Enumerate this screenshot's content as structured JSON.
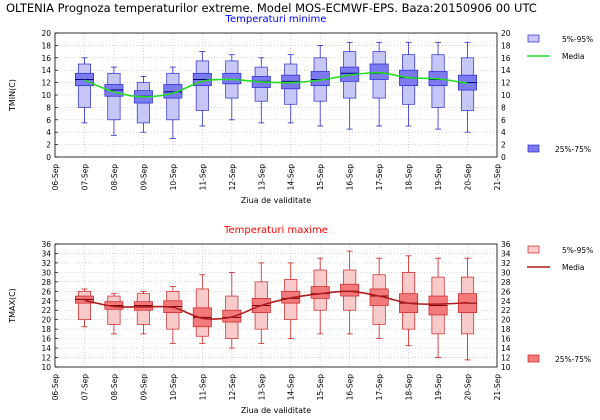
{
  "page_title": "OLTENIA  Prognoza temperaturilor extreme.  Model MOS-ECMWF-EPS. Baza:20150906 00 UTC",
  "colors": {
    "min_title": "#0000ff",
    "max_title": "#ff0000",
    "min_box": "#7b7bef",
    "min_box_light": "#c6c6f7",
    "min_stroke": "#2a2ad0",
    "min_median": "#00007a",
    "min_mean": "#22dd22",
    "max_box": "#f27a7a",
    "max_box_light": "#f8caca",
    "max_stroke": "#cc2020",
    "max_median": "#7a0000",
    "max_mean": "#b01c1c"
  },
  "chart_data": [
    {
      "type": "box",
      "title": "Temperaturi minime",
      "xlabel": "Ziua de validitate",
      "ylabel": "TMIN(C)",
      "ylim": [
        0,
        20
      ],
      "yticks": [
        "0",
        "2",
        "4",
        "6",
        "8",
        "10",
        "12",
        "14",
        "16",
        "18",
        "20"
      ],
      "categories": [
        "06-Sep",
        "07-Sep",
        "08-Sep",
        "09-Sep",
        "10-Sep",
        "11-Sep",
        "12-Sep",
        "13-Sep",
        "14-Sep",
        "15-Sep",
        "16-Sep",
        "17-Sep",
        "18-Sep",
        "19-Sep",
        "20-Sep",
        "21-Sep"
      ],
      "grid": true,
      "legend": {
        "placement": "right",
        "p5_95": "5%-95%",
        "mean": "Media",
        "p25_75": "25%-75%"
      },
      "series": [
        {
          "category": "07-Sep",
          "min": 5.5,
          "p5": 8,
          "p25": 11.5,
          "median": 12.5,
          "p75": 13.5,
          "p95": 15,
          "max": 16,
          "mean": 12.4
        },
        {
          "category": "08-Sep",
          "min": 3.5,
          "p5": 6,
          "p25": 9.8,
          "median": 10.8,
          "p75": 11.7,
          "p95": 13.5,
          "max": 14.5,
          "mean": 10.5
        },
        {
          "category": "09-Sep",
          "min": 4,
          "p5": 5.5,
          "p25": 8.7,
          "median": 9.8,
          "p75": 10.7,
          "p95": 12,
          "max": 13,
          "mean": 9.7
        },
        {
          "category": "10-Sep",
          "min": 3,
          "p5": 6,
          "p25": 9.5,
          "median": 10.5,
          "p75": 11.7,
          "p95": 13.5,
          "max": 14.5,
          "mean": 10.3
        },
        {
          "category": "11-Sep",
          "min": 5,
          "p5": 7.5,
          "p25": 11.5,
          "median": 12.5,
          "p75": 13.5,
          "p95": 15.5,
          "max": 17,
          "mean": 12.2
        },
        {
          "category": "12-Sep",
          "min": 6,
          "p5": 9.5,
          "p25": 11.8,
          "median": 12.5,
          "p75": 13.5,
          "p95": 15.5,
          "max": 16.5,
          "mean": 12.5
        },
        {
          "category": "13-Sep",
          "min": 5.5,
          "p5": 9,
          "p25": 11.2,
          "median": 12.2,
          "p75": 13,
          "p95": 14.5,
          "max": 16,
          "mean": 12.1
        },
        {
          "category": "14-Sep",
          "min": 5.5,
          "p5": 8.5,
          "p25": 11,
          "median": 12.2,
          "p75": 13.2,
          "p95": 15,
          "max": 16.5,
          "mean": 12
        },
        {
          "category": "15-Sep",
          "min": 5,
          "p5": 9,
          "p25": 11.5,
          "median": 12.5,
          "p75": 13.8,
          "p95": 16,
          "max": 18,
          "mean": 12.4
        },
        {
          "category": "16-Sep",
          "min": 4.5,
          "p5": 9.5,
          "p25": 12.2,
          "median": 13.5,
          "p75": 14.5,
          "p95": 17,
          "max": 18.5,
          "mean": 13.2
        },
        {
          "category": "17-Sep",
          "min": 5,
          "p5": 9.5,
          "p25": 12.5,
          "median": 13.5,
          "p75": 15,
          "p95": 17,
          "max": 18.5,
          "mean": 13.6
        },
        {
          "category": "18-Sep",
          "min": 5,
          "p5": 8.5,
          "p25": 11.5,
          "median": 12.8,
          "p75": 14,
          "p95": 16.5,
          "max": 18.5,
          "mean": 12.8
        },
        {
          "category": "19-Sep",
          "min": 4.5,
          "p5": 8,
          "p25": 11.5,
          "median": 12.5,
          "p75": 13.8,
          "p95": 16.5,
          "max": 18.5,
          "mean": 12.6
        },
        {
          "category": "20-Sep",
          "min": 4,
          "p5": 7.5,
          "p25": 10.8,
          "median": 12,
          "p75": 13.2,
          "p95": 16,
          "max": 18.5,
          "mean": 11.9
        }
      ]
    },
    {
      "type": "box",
      "title": "Temperaturi maxime",
      "xlabel": "Ziua de validitate",
      "ylabel": "TMAX(C)",
      "ylim": [
        10,
        36
      ],
      "yticks": [
        "10",
        "12",
        "14",
        "16",
        "18",
        "20",
        "22",
        "24",
        "26",
        "28",
        "30",
        "32",
        "34",
        "36"
      ],
      "categories": [
        "06-Sep",
        "07-Sep",
        "08-Sep",
        "09-Sep",
        "10-Sep",
        "11-Sep",
        "12-Sep",
        "13-Sep",
        "14-Sep",
        "15-Sep",
        "16-Sep",
        "17-Sep",
        "18-Sep",
        "19-Sep",
        "20-Sep",
        "21-Sep"
      ],
      "grid": true,
      "legend": {
        "placement": "right",
        "p5_95": "5%-95%",
        "mean": "Media",
        "p25_75": "25%-75%"
      },
      "series": [
        {
          "category": "07-Sep",
          "min": 18.5,
          "p5": 20,
          "p25": 23.5,
          "median": 24.3,
          "p75": 25,
          "p95": 26,
          "max": 26.5,
          "mean": 24.1
        },
        {
          "category": "08-Sep",
          "min": 17,
          "p5": 19,
          "p25": 22.2,
          "median": 23,
          "p75": 23.8,
          "p95": 25,
          "max": 25.5,
          "mean": 22.8
        },
        {
          "category": "09-Sep",
          "min": 17,
          "p5": 19,
          "p25": 22,
          "median": 23,
          "p75": 23.8,
          "p95": 25.5,
          "max": 26,
          "mean": 22.7
        },
        {
          "category": "10-Sep",
          "min": 15,
          "p5": 18,
          "p25": 21.5,
          "median": 22.8,
          "p75": 24,
          "p95": 26,
          "max": 27,
          "mean": 22.6
        },
        {
          "category": "11-Sep",
          "min": 15,
          "p5": 16.5,
          "p25": 18.5,
          "median": 20.5,
          "p75": 22.5,
          "p95": 26.5,
          "max": 29.5,
          "mean": 20.3
        },
        {
          "category": "12-Sep",
          "min": 14,
          "p5": 16,
          "p25": 19.5,
          "median": 20.5,
          "p75": 22,
          "p95": 25,
          "max": 30,
          "mean": 20.6
        },
        {
          "category": "13-Sep",
          "min": 15,
          "p5": 18,
          "p25": 21.5,
          "median": 23,
          "p75": 24.5,
          "p95": 28,
          "max": 32,
          "mean": 23
        },
        {
          "category": "14-Sep",
          "min": 16,
          "p5": 20,
          "p25": 23.5,
          "median": 24.5,
          "p75": 26,
          "p95": 28.5,
          "max": 32,
          "mean": 24.6
        },
        {
          "category": "15-Sep",
          "min": 17,
          "p5": 22,
          "p25": 24.5,
          "median": 25.5,
          "p75": 27,
          "p95": 30.5,
          "max": 33,
          "mean": 25.5
        },
        {
          "category": "16-Sep",
          "min": 17,
          "p5": 22,
          "p25": 25,
          "median": 26,
          "p75": 27.5,
          "p95": 30.5,
          "max": 34.5,
          "mean": 26
        },
        {
          "category": "17-Sep",
          "min": 16,
          "p5": 19,
          "p25": 23,
          "median": 25,
          "p75": 26.5,
          "p95": 29.5,
          "max": 33,
          "mean": 25
        },
        {
          "category": "18-Sep",
          "min": 14.5,
          "p5": 18,
          "p25": 21.5,
          "median": 23.5,
          "p75": 25.5,
          "p95": 30,
          "max": 33.5,
          "mean": 23.5
        },
        {
          "category": "19-Sep",
          "min": 12,
          "p5": 17,
          "p25": 21,
          "median": 23,
          "p75": 25,
          "p95": 29,
          "max": 33,
          "mean": 23.3
        },
        {
          "category": "20-Sep",
          "min": 11.5,
          "p5": 17,
          "p25": 21.5,
          "median": 23.5,
          "p75": 25.5,
          "p95": 29,
          "max": 33,
          "mean": 23.6
        }
      ]
    }
  ]
}
